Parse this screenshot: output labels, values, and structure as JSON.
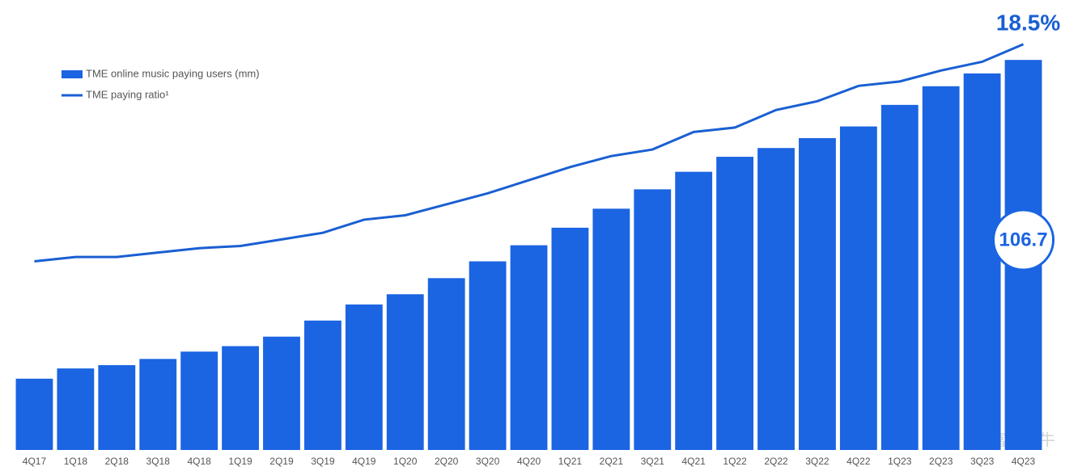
{
  "chart_data": {
    "type": "bar-line",
    "categories": [
      "4Q17",
      "1Q18",
      "2Q18",
      "3Q18",
      "4Q18",
      "1Q19",
      "2Q19",
      "3Q19",
      "4Q19",
      "1Q20",
      "2Q20",
      "3Q20",
      "4Q20",
      "1Q21",
      "2Q21",
      "3Q21",
      "4Q21",
      "1Q22",
      "2Q22",
      "3Q22",
      "4Q22",
      "1Q23",
      "2Q23",
      "3Q23",
      "4Q23"
    ],
    "series": [
      {
        "name": "TME online music paying users (mm)",
        "color": "#1b64e2",
        "type": "bar",
        "values": [
          19.5,
          22.3,
          23.2,
          24.9,
          26.9,
          28.4,
          31.0,
          35.4,
          39.8,
          42.6,
          47.0,
          51.6,
          56.0,
          60.8,
          66.0,
          71.3,
          76.1,
          80.2,
          82.6,
          85.3,
          88.5,
          94.4,
          99.5,
          103.0,
          106.7
        ]
      },
      {
        "name": "TME paying ratio¹",
        "color": "#1a5fd2",
        "type": "line",
        "axis": "y2",
        "values": [
          8.6,
          8.8,
          8.8,
          9.0,
          9.2,
          9.3,
          9.6,
          9.9,
          10.5,
          10.7,
          11.2,
          11.7,
          12.3,
          12.9,
          13.4,
          13.7,
          14.5,
          14.7,
          15.5,
          15.9,
          16.6,
          16.8,
          17.3,
          17.7,
          18.5
        ],
        "value_labels": [
          null,
          null,
          null,
          null,
          null,
          null,
          null,
          null,
          null,
          null,
          null,
          null,
          null,
          null,
          null,
          null,
          null,
          null,
          null,
          null,
          null,
          null,
          null,
          null,
          "18.5%"
        ]
      }
    ],
    "ylim": [
      0,
      120
    ],
    "y2lim": [
      0,
      20
    ],
    "grid": false,
    "watermark": "富途牛牛"
  }
}
